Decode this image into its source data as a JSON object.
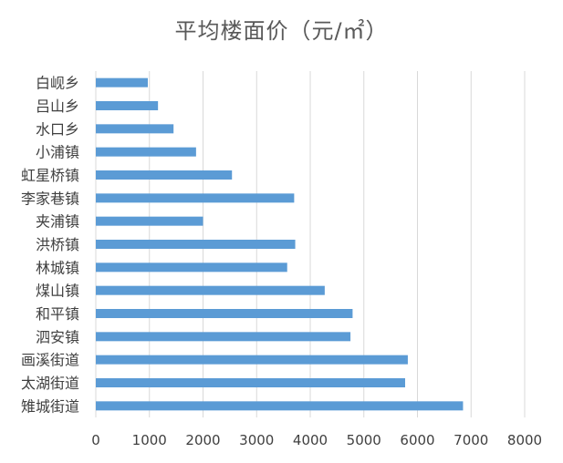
{
  "chart_data": {
    "type": "bar",
    "orientation": "horizontal",
    "title": "平均楼面价（元/㎡）",
    "xlabel": "",
    "ylabel": "",
    "xlim": [
      0,
      8000
    ],
    "x_ticks": [
      0,
      1000,
      2000,
      3000,
      4000,
      5000,
      6000,
      7000,
      8000
    ],
    "grid": "vertical",
    "legend": "none",
    "bar_color": "#5B9BD5",
    "categories": [
      "白岘乡",
      "吕山乡",
      "水口乡",
      "小浦镇",
      "虹星桥镇",
      "李家巷镇",
      "夹浦镇",
      "洪桥镇",
      "林城镇",
      "煤山镇",
      "和平镇",
      "泗安镇",
      "画溪街道",
      "太湖街道",
      "雉城街道"
    ],
    "values": [
      970,
      1160,
      1450,
      1870,
      2540,
      3700,
      2000,
      3720,
      3570,
      4270,
      4790,
      4750,
      5820,
      5770,
      6850
    ]
  }
}
